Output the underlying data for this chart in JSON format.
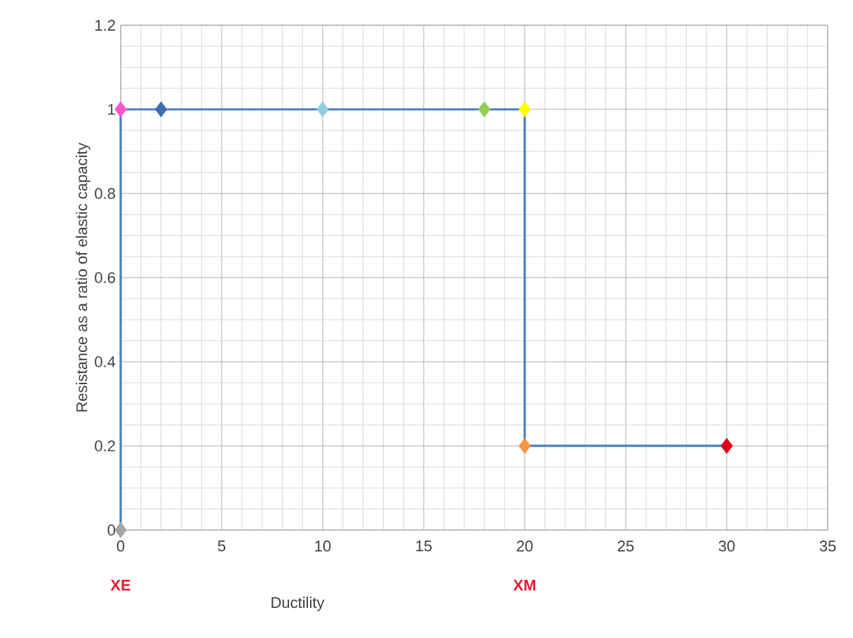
{
  "chart_data": {
    "type": "line",
    "xlabel": "Ductility",
    "ylabel": "Resistance as a ratio of elastic capacity",
    "x": [
      0,
      0,
      2,
      10,
      18,
      20,
      20,
      30
    ],
    "series": [
      {
        "color": "#4a7ebb",
        "values": [
          0,
          1,
          1,
          1,
          1,
          1,
          0.2,
          0.2
        ],
        "colors": [
          "#a5a5a5",
          "#ff55cc",
          "#3d6fb0",
          "#93cddd",
          "#92d050",
          "#ffff00",
          "#f79646",
          "#e0001b"
        ]
      }
    ],
    "marker": "diamond",
    "line_style": "solid",
    "grid": true,
    "xlim": [
      0,
      35
    ],
    "xticks": [
      0,
      5,
      10,
      15,
      20,
      25,
      30,
      35
    ],
    "ylim": [
      0,
      1.2
    ],
    "yticks": [
      0,
      0.2,
      0.4,
      0.6,
      0.8,
      1,
      1.2
    ],
    "annotations": [
      "XE",
      "XM"
    ]
  }
}
